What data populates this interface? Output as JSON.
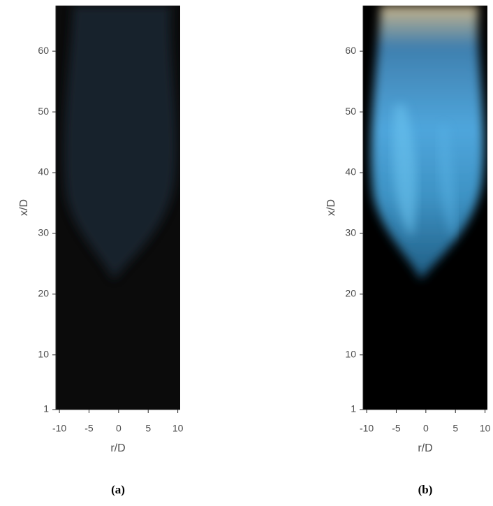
{
  "chart_data": [
    {
      "type": "image",
      "caption": "(a)",
      "xlabel": "r/D",
      "ylabel": "x/D",
      "xlim": [
        -10.6,
        10.4
      ],
      "ylim": [
        1,
        67.5
      ],
      "xticks": [
        -10,
        -5,
        0,
        5,
        10
      ],
      "yticks": [
        1,
        10,
        20,
        30,
        40,
        50,
        60
      ]
    },
    {
      "type": "image",
      "caption": "(b)",
      "xlabel": "r/D",
      "ylabel": "x/D",
      "xlim": [
        -10.6,
        10.4
      ],
      "ylim": [
        1,
        67.5
      ],
      "xticks": [
        -10,
        -5,
        0,
        5,
        10
      ],
      "yticks": [
        1,
        10,
        20,
        30,
        40,
        50,
        60
      ]
    }
  ]
}
